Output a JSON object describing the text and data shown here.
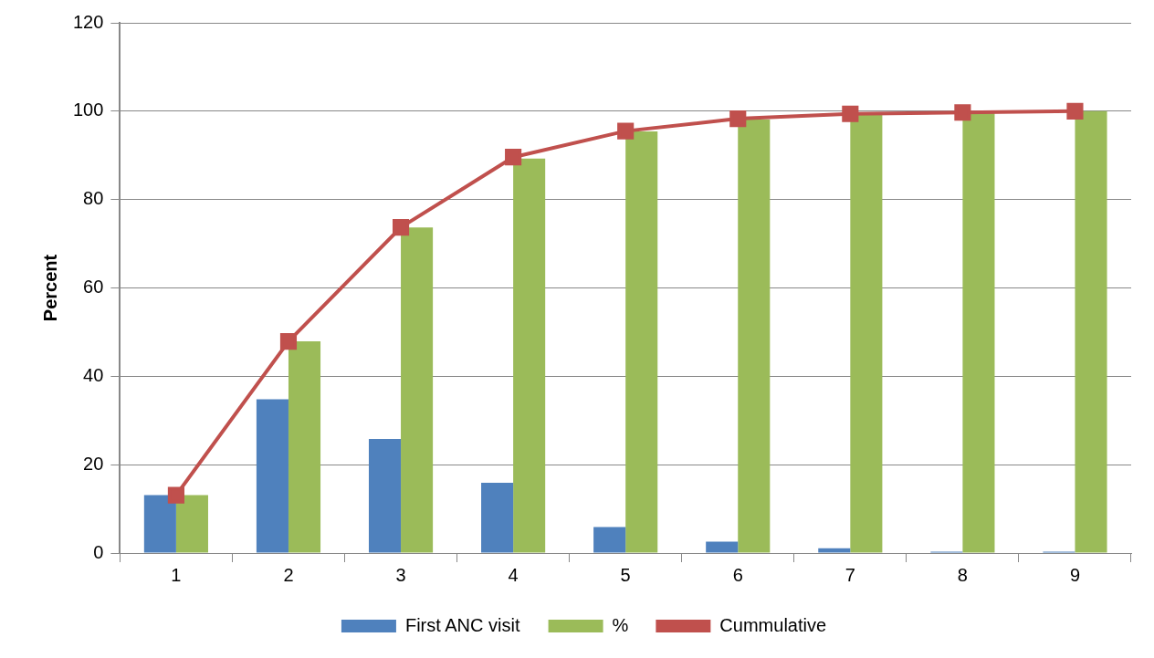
{
  "chart_data": {
    "type": "bar",
    "ylabel": "Percent",
    "categories": [
      "1",
      "2",
      "3",
      "4",
      "5",
      "6",
      "7",
      "8",
      "9"
    ],
    "series": [
      {
        "name": "First ANC visit",
        "color": "#4f81bd",
        "values": [
          13.1,
          34.8,
          25.8,
          15.9,
          5.9,
          2.6,
          1.1,
          0.3,
          0.3
        ]
      },
      {
        "name": "%",
        "color": "#9bbb59",
        "values": [
          13.1,
          47.9,
          73.7,
          89.3,
          95.4,
          98.1,
          99.3,
          99.7,
          100
        ]
      },
      {
        "name": "Cummulative",
        "type": "line",
        "color": "#c0504d",
        "values": [
          13.1,
          47.9,
          73.7,
          89.6,
          95.5,
          98.3,
          99.4,
          99.7,
          100
        ]
      }
    ],
    "ylim": [
      0,
      120
    ],
    "yticks": [
      0,
      20,
      40,
      60,
      80,
      100,
      120
    ],
    "grid": "y",
    "legend": "bottom",
    "marker": "square",
    "line_style": "solid"
  }
}
